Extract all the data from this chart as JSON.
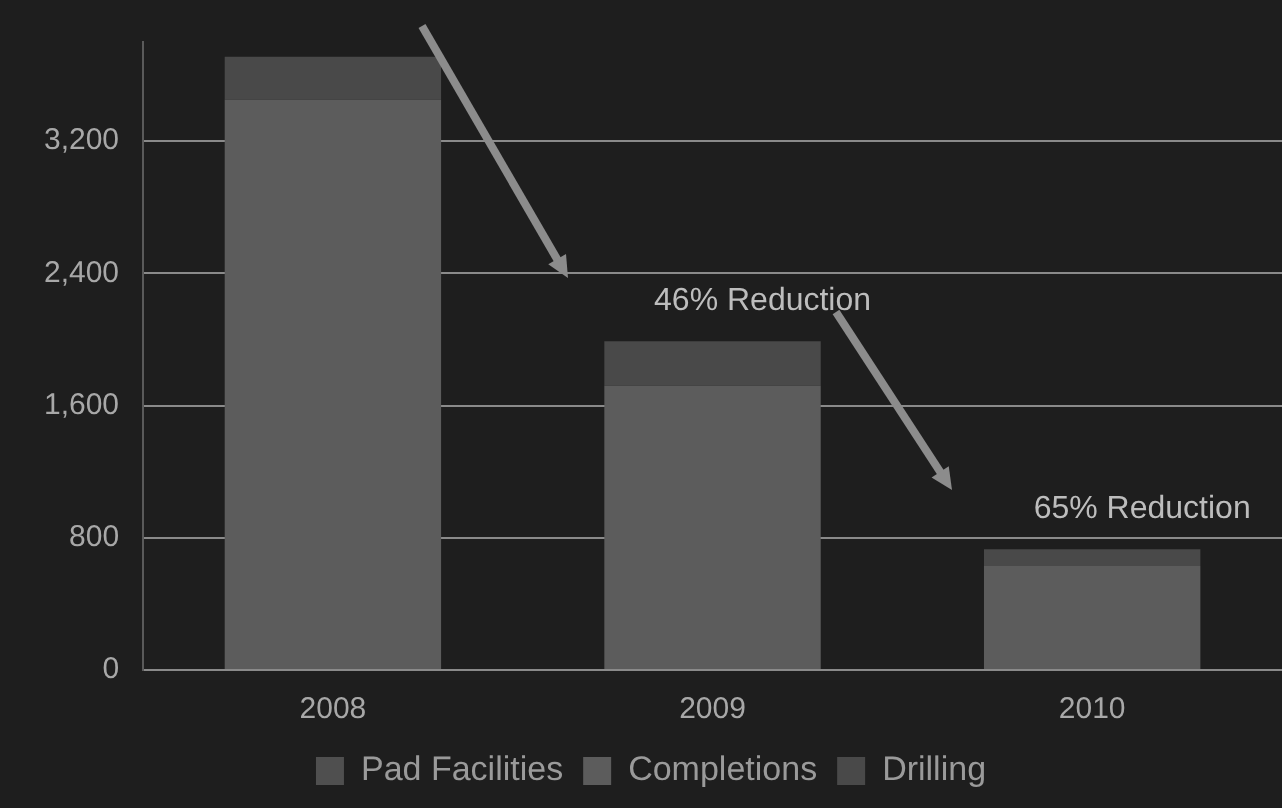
{
  "chart_data": {
    "type": "bar",
    "stacked": true,
    "categories": [
      "2008",
      "2009",
      "2010"
    ],
    "series": [
      {
        "name": "Pad Facilities",
        "color": "#4f4f4f",
        "values": [
          null,
          null,
          null
        ]
      },
      {
        "name": "Completions",
        "color": "#5c5c5c",
        "values": [
          3450,
          1720,
          630
        ]
      },
      {
        "name": "Drilling",
        "color": "#494949",
        "values": [
          260,
          270,
          100
        ]
      }
    ],
    "ylim": [
      0,
      3800
    ],
    "yticks": [
      0,
      800,
      {
        "value": 1600,
        "label": "1,600"
      },
      {
        "value": 2400,
        "label": "2,400"
      },
      {
        "value": 3200,
        "label": "3,200"
      }
    ],
    "grid": "y",
    "legend": "bottom",
    "annotations": [
      "46% Reduction",
      "65% Reduction"
    ]
  }
}
